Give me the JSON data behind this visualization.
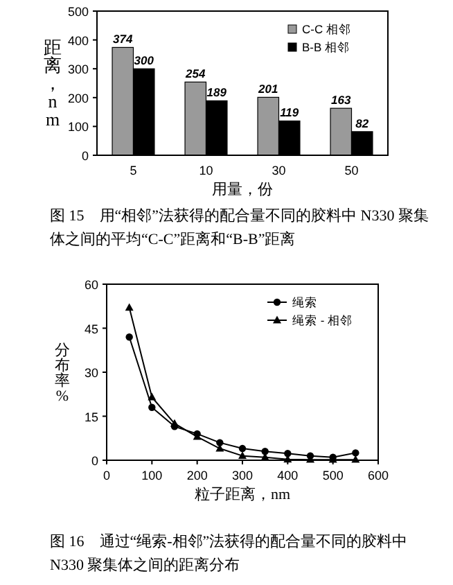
{
  "chart_data": [
    {
      "type": "bar",
      "categories": [
        "5",
        "10",
        "30",
        "50"
      ],
      "xlabel": "用量，份",
      "ylabel": "距离，nm",
      "ylim": [
        0,
        500
      ],
      "yticks": [
        0,
        100,
        200,
        300,
        400,
        500
      ],
      "data_labels": true,
      "legend": "top right",
      "grid": false,
      "series": [
        {
          "name": "C-C 相邻",
          "color": "#9a9a9a",
          "values": [
            374,
            254,
            201,
            163
          ]
        },
        {
          "name": "B-B 相邻",
          "color": "#000000",
          "values": [
            300,
            189,
            119,
            82
          ]
        }
      ],
      "annotations": [
        "图 15　用“相邻”法获得的配合量不同的胶料中 N330 聚集体之间的平均“C-C”距离和“B-B”距离"
      ]
    },
    {
      "type": "line",
      "xlabel": "粒子距离，nm",
      "ylabel": "分布率 %",
      "xlim": [
        0,
        600
      ],
      "xticks": [
        0,
        100,
        200,
        300,
        400,
        500,
        600
      ],
      "ylim": [
        0,
        60
      ],
      "yticks": [
        0,
        15,
        30,
        45,
        60
      ],
      "legend": "top right",
      "grid": false,
      "line_style": "solid",
      "series": [
        {
          "name": "绳索",
          "color": "#000000",
          "marker": "circle",
          "x": [
            50,
            100,
            150,
            200,
            250,
            300,
            350,
            400,
            450,
            500,
            550
          ],
          "values": [
            42,
            18,
            11.5,
            9,
            6,
            4,
            3,
            2.3,
            1.5,
            1,
            2.5
          ]
        },
        {
          "name": "绳索 - 相邻",
          "color": "#000000",
          "marker": "triangle",
          "x": [
            50,
            100,
            150,
            200,
            250,
            300,
            350,
            400,
            450,
            500,
            550
          ],
          "values": [
            52,
            21.5,
            12.5,
            8,
            4,
            1.5,
            1,
            0.3,
            0.2,
            0.2,
            0.2
          ]
        }
      ],
      "annotations": [
        "图 16　通过“绳索-相邻”法获得的配合量不同的胶料中 N330 聚集体之间的距离分布"
      ]
    }
  ]
}
